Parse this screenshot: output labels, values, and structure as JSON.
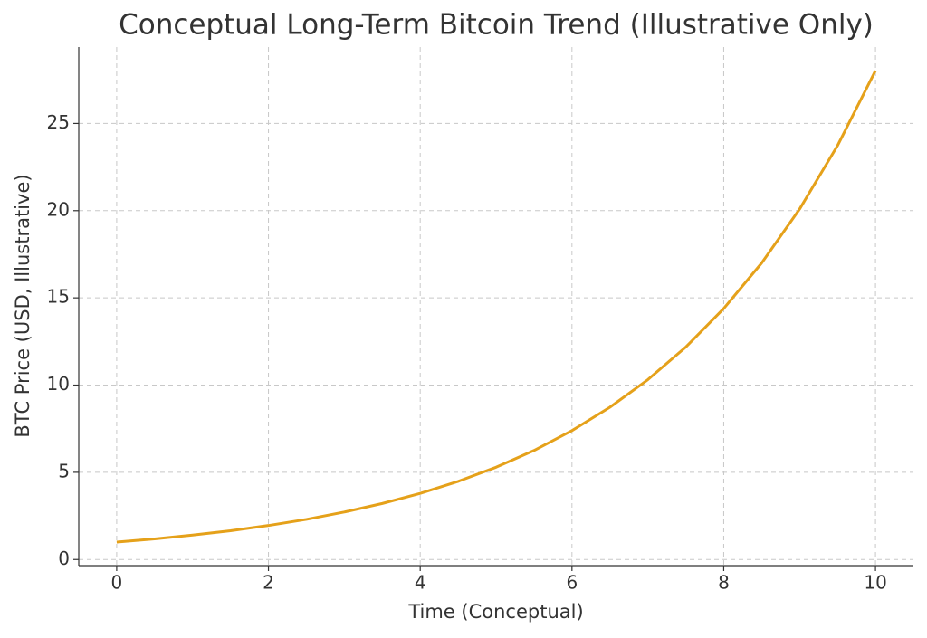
{
  "chart_data": {
    "type": "line",
    "title": "Conceptual Long-Term Bitcoin Trend (Illustrative Only)",
    "x_label": "Time (Conceptual)",
    "y_label": "BTC Price (USD, Illustrative)",
    "x": [
      0,
      0.5,
      1,
      1.5,
      2,
      2.5,
      3,
      3.5,
      4,
      4.5,
      5,
      5.5,
      6,
      6.5,
      7,
      7.5,
      8,
      8.5,
      9,
      9.5,
      10
    ],
    "values": [
      1,
      1.18,
      1.4,
      1.65,
      1.95,
      2.3,
      2.72,
      3.21,
      3.79,
      4.48,
      5.29,
      6.25,
      7.39,
      8.73,
      10.31,
      12.18,
      14.39,
      17.0,
      20.09,
      23.73,
      28.03
    ],
    "color": "#e5a11a",
    "xlim": [
      -0.5,
      10.5
    ],
    "xticks": [
      0,
      2,
      4,
      6,
      8,
      10
    ],
    "ylim": [
      -0.35,
      29.38
    ],
    "yticks": [
      0,
      5,
      10,
      15,
      20,
      25
    ],
    "grid": true
  }
}
